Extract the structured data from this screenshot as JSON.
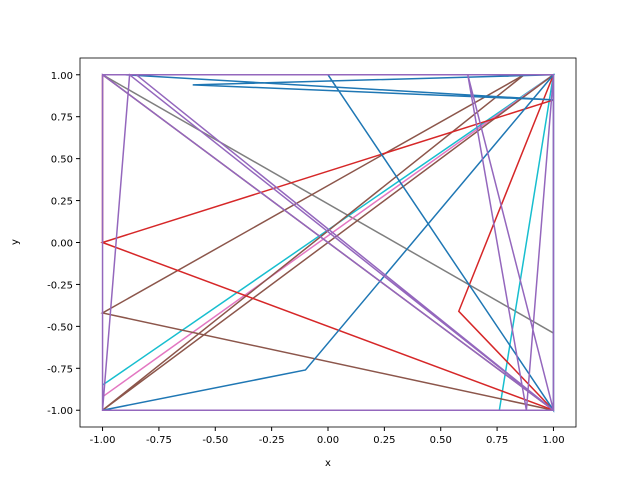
{
  "chart_data": {
    "type": "line",
    "xlabel": "x",
    "ylabel": "y",
    "xlim": [
      -1.1,
      1.1
    ],
    "ylim": [
      -1.1,
      1.1
    ],
    "xticks": [
      {
        "value": -1,
        "label": "-1.00"
      },
      {
        "value": -0.75,
        "label": "-0.75"
      },
      {
        "value": -0.5,
        "label": "-0.50"
      },
      {
        "value": -0.25,
        "label": "-0.25"
      },
      {
        "value": 0,
        "label": "0.00"
      },
      {
        "value": 0.25,
        "label": "0.25"
      },
      {
        "value": 0.5,
        "label": "0.50"
      },
      {
        "value": 0.75,
        "label": "0.75"
      },
      {
        "value": 1,
        "label": "1.00"
      }
    ],
    "yticks": [
      {
        "value": -1,
        "label": "-1.00"
      },
      {
        "value": -0.75,
        "label": "-0.75"
      },
      {
        "value": -0.5,
        "label": "-0.50"
      },
      {
        "value": -0.25,
        "label": "-0.25"
      },
      {
        "value": 0,
        "label": "0.00"
      },
      {
        "value": 0.25,
        "label": "0.25"
      },
      {
        "value": 0.5,
        "label": "0.50"
      },
      {
        "value": 0.75,
        "label": "0.75"
      },
      {
        "value": 1,
        "label": "1.00"
      }
    ],
    "series": [
      {
        "color": "#7f7f7f",
        "x": [
          -1,
          1
        ],
        "y": [
          1,
          -0.54
        ]
      },
      {
        "color": "#17becf",
        "x": [
          -1,
          1,
          0.76
        ],
        "y": [
          -0.85,
          1,
          -1
        ]
      },
      {
        "color": "#e377c2",
        "x": [
          -1,
          1
        ],
        "y": [
          -0.92,
          1
        ]
      },
      {
        "color": "#8c564b",
        "x": [
          -1,
          1,
          -1,
          0.87,
          -1,
          1
        ],
        "y": [
          1,
          -1,
          -0.42,
          1,
          -1,
          1
        ]
      },
      {
        "color": "#d62728",
        "x": [
          -1,
          -1,
          -1,
          1,
          -1,
          1,
          0.58,
          1
        ],
        "y": [
          0.55,
          1,
          0,
          0.85,
          0,
          -1,
          -0.41,
          1
        ]
      },
      {
        "color": "#1f77b4",
        "x": [
          -1,
          -0.1,
          1,
          -0.6,
          1,
          -0.9,
          0,
          1,
          1
        ],
        "y": [
          -1,
          -0.76,
          1,
          0.94,
          0.85,
          1,
          1,
          -1,
          1
        ]
      },
      {
        "color": "#9467bd",
        "x": [
          -1,
          1,
          1,
          -1,
          -1,
          1,
          -0.88,
          -1,
          -1,
          1,
          0.62,
          0.88,
          1,
          -0.85,
          1
        ],
        "y": [
          1,
          1,
          -1,
          -1,
          1,
          -1,
          1,
          -1,
          -1,
          -1,
          1,
          -1,
          1,
          1,
          -1
        ]
      }
    ]
  }
}
